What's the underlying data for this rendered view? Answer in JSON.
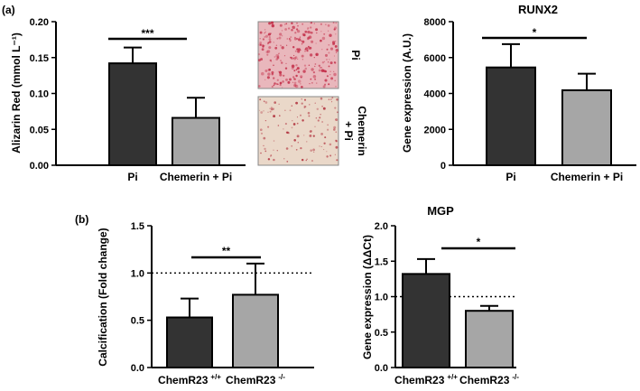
{
  "panels": {
    "a": "(a)",
    "b": "(b)"
  },
  "images": [
    {
      "caption": "Pi",
      "tint": "#e9b7bc",
      "dot_color": "#c22a45"
    },
    {
      "caption": "Chemerin + Pi",
      "tint": "#ead8c9",
      "dot_color": "#b0303c"
    }
  ],
  "chart_data": [
    {
      "type": "bar",
      "title": "",
      "xlabel": "",
      "ylabel": "Alizarin Red (mmol L⁻¹)",
      "categories": [
        "Pi",
        "Chemerin + Pi"
      ],
      "values": [
        0.142,
        0.066
      ],
      "errors": [
        0.022,
        0.028
      ],
      "ylim": [
        0,
        0.2
      ],
      "yticks": [
        "0.00",
        "0.05",
        "0.10",
        "0.15",
        "0.20"
      ],
      "colors": [
        "#333333",
        "#a6a6a6"
      ],
      "significance": "***",
      "reference_line": null
    },
    {
      "type": "bar",
      "title": "RUNX2",
      "xlabel": "",
      "ylabel": "Gene expression (A.U.)",
      "categories": [
        "Pi",
        "Chemerin + Pi"
      ],
      "values": [
        5450,
        4180
      ],
      "errors": [
        1300,
        920
      ],
      "ylim": [
        0,
        8000
      ],
      "yticks": [
        "0",
        "2000",
        "4000",
        "6000",
        "8000"
      ],
      "colors": [
        "#333333",
        "#a6a6a6"
      ],
      "significance": "*",
      "reference_line": null
    },
    {
      "type": "bar",
      "title": "",
      "xlabel": "",
      "ylabel": "Calcification (Fold change)",
      "categories": [
        "ChemR23 +/+",
        "ChemR23 -/-"
      ],
      "category_parts": [
        [
          "ChemR23",
          "+/+"
        ],
        [
          "ChemR23",
          "-/-"
        ]
      ],
      "values": [
        0.53,
        0.77
      ],
      "errors": [
        0.2,
        0.33
      ],
      "ylim": [
        0,
        1.5
      ],
      "yticks": [
        "0.0",
        "0.5",
        "1.0",
        "1.5"
      ],
      "colors": [
        "#333333",
        "#a6a6a6"
      ],
      "significance": "**",
      "reference_line": 1.0
    },
    {
      "type": "bar",
      "title": "MGP",
      "xlabel": "",
      "ylabel": "Gene expression (ΔΔCt)",
      "categories": [
        "ChemR23 +/+",
        "ChemR23 -/-"
      ],
      "category_parts": [
        [
          "ChemR23",
          "+/+"
        ],
        [
          "ChemR23",
          "-/-"
        ]
      ],
      "values": [
        1.32,
        0.8
      ],
      "errors": [
        0.21,
        0.07
      ],
      "ylim": [
        0,
        2.0
      ],
      "yticks": [
        "0.0",
        "0.5",
        "1.0",
        "1.5",
        "2.0"
      ],
      "colors": [
        "#333333",
        "#a6a6a6"
      ],
      "significance": "*",
      "reference_line": 1.0
    }
  ]
}
